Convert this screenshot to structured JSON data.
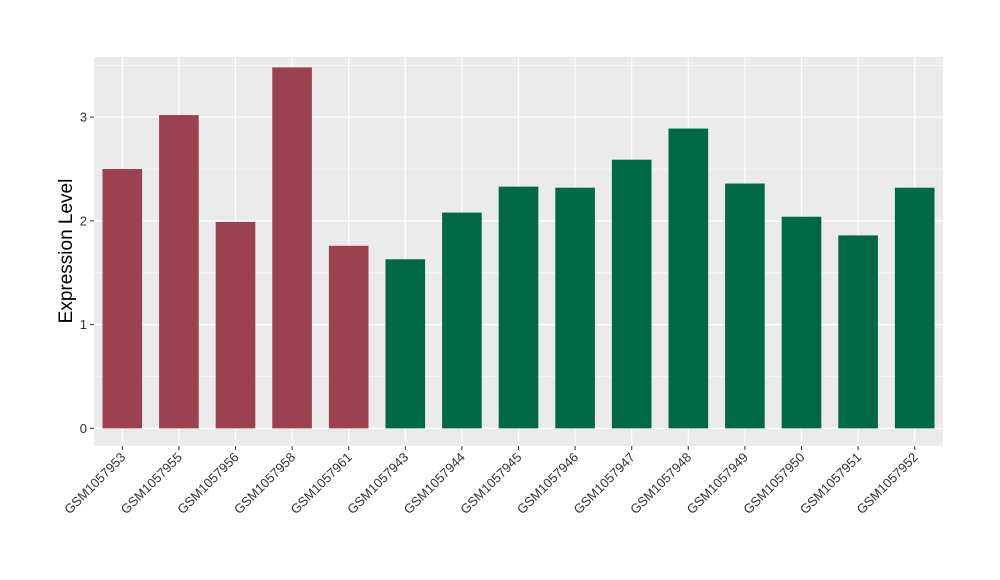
{
  "chart_data": {
    "type": "bar",
    "title": "",
    "xlabel": "",
    "ylabel": "Expression Level",
    "ylim": [
      -0.17,
      3.58
    ],
    "yticks": [
      0,
      1,
      2,
      3
    ],
    "grid": true,
    "background": "#EBEBEB",
    "gridline_color": "#FFFFFF",
    "categories": [
      "GSM1057953",
      "GSM1057955",
      "GSM1057956",
      "GSM1057958",
      "GSM1057961",
      "GSM1057943",
      "GSM1057944",
      "GSM1057945",
      "GSM1057946",
      "GSM1057947",
      "GSM1057948",
      "GSM1057949",
      "GSM1057950",
      "GSM1057951",
      "GSM1057952"
    ],
    "values": [
      2.5,
      3.02,
      1.99,
      3.48,
      1.76,
      1.63,
      2.08,
      2.33,
      2.32,
      2.59,
      2.89,
      2.36,
      2.04,
      1.86,
      2.32
    ],
    "group_colors": [
      "#9B4150",
      "#9B4150",
      "#9B4150",
      "#9B4150",
      "#9B4150",
      "#006845",
      "#006845",
      "#006845",
      "#006845",
      "#006845",
      "#006845",
      "#006845",
      "#006845",
      "#006845",
      "#006845"
    ]
  }
}
